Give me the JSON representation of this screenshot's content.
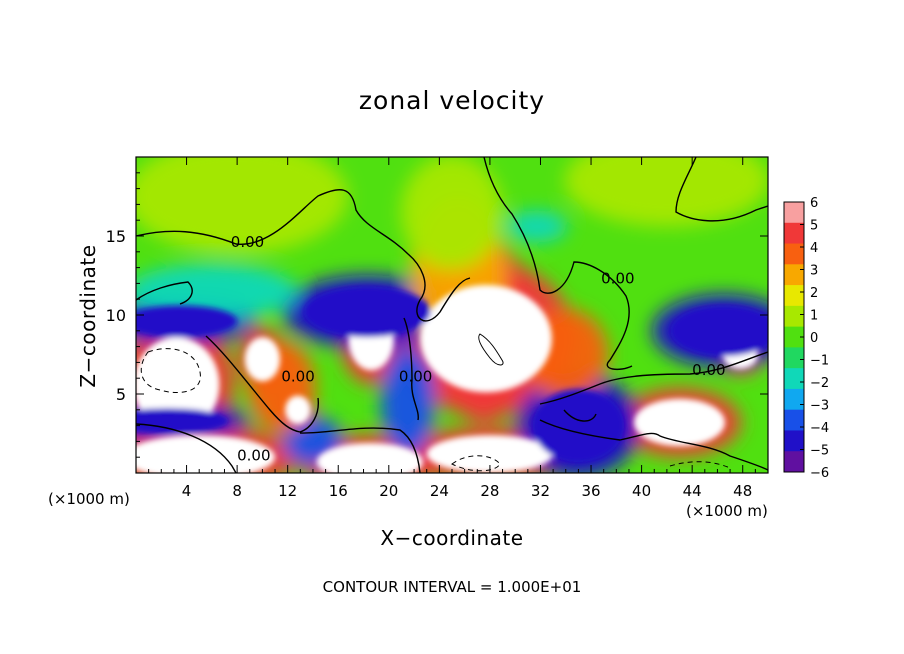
{
  "chart_data": {
    "type": "heatmap",
    "title": "zonal velocity",
    "xlabel": "X−coordinate",
    "ylabel": "Z−coordinate",
    "x_unit_label": "(×1000 m)",
    "footer": "CONTOUR INTERVAL = 1.000E+01",
    "xlim": [
      0,
      50
    ],
    "ylim": [
      0,
      20
    ],
    "x_ticks": [
      4,
      8,
      12,
      16,
      20,
      24,
      28,
      32,
      36,
      40,
      44,
      48
    ],
    "y_ticks": [
      5,
      10,
      15
    ],
    "colorbar": {
      "ticks": [
        6,
        5,
        4,
        3,
        2,
        1,
        0,
        -1,
        -2,
        -3,
        -4,
        -5,
        -6
      ],
      "colors": [
        "#f8a0a0",
        "#f03838",
        "#f86010",
        "#f8a800",
        "#e8e800",
        "#a8e800",
        "#50e010",
        "#20d860",
        "#10d8b8",
        "#10a8f0",
        "#1850e8",
        "#2010c8",
        "#6010a0"
      ]
    },
    "contour_interval": 10,
    "contour_labels": [
      {
        "text": "0.00",
        "x": 7.5,
        "y": 14.3
      },
      {
        "text": "0.00",
        "x": 36.8,
        "y": 12.0
      },
      {
        "text": "0.00",
        "x": 44.0,
        "y": 6.2
      },
      {
        "text": "0.00",
        "x": 8.0,
        "y": 0.8
      },
      {
        "text": "0.00",
        "x": 11.5,
        "y": 5.8
      },
      {
        "text": "0.00",
        "x": 20.8,
        "y": 5.8
      }
    ],
    "regions": [
      {
        "v": 6,
        "cx": 27.7,
        "cy": 8.5,
        "rx": 5.2,
        "ry": 3.4
      },
      {
        "v": 6,
        "cx": 18.6,
        "cy": 8.5,
        "rx": 1.8,
        "ry": 2.0
      },
      {
        "v": 6,
        "cx": 43.0,
        "cy": 3.2,
        "rx": 3.6,
        "ry": 1.5
      },
      {
        "v": 6,
        "cx": 3.2,
        "cy": 5.6,
        "rx": 3.4,
        "ry": 3.0
      },
      {
        "v": 6,
        "cx": 5.0,
        "cy": 1.0,
        "rx": 6.0,
        "ry": 1.4
      },
      {
        "v": 6,
        "cx": 18.5,
        "cy": 0.7,
        "rx": 4.2,
        "ry": 1.2
      },
      {
        "v": 6,
        "cx": 28.0,
        "cy": 1.2,
        "rx": 5.0,
        "ry": 1.2
      },
      {
        "v": 6,
        "cx": 10.0,
        "cy": 7.2,
        "rx": 1.4,
        "ry": 1.4
      },
      {
        "v": 6,
        "cx": 12.8,
        "cy": 4.0,
        "rx": 1.0,
        "ry": 0.9
      },
      {
        "v": 6,
        "cx": 47.8,
        "cy": 7.5,
        "rx": 1.4,
        "ry": 0.9
      },
      {
        "v": -5,
        "cx": 18.3,
        "cy": 10.2,
        "rx": 5.0,
        "ry": 1.6
      },
      {
        "v": -5,
        "cx": 3.5,
        "cy": 9.6,
        "rx": 4.5,
        "ry": 1.0
      },
      {
        "v": -5,
        "cx": 46.5,
        "cy": 9.0,
        "rx": 4.2,
        "ry": 1.6
      },
      {
        "v": -5,
        "cx": 35.0,
        "cy": 3.0,
        "rx": 3.6,
        "ry": 2.3
      },
      {
        "v": -5,
        "cx": 2.5,
        "cy": 3.3,
        "rx": 4.8,
        "ry": 0.8
      },
      {
        "v": -4,
        "cx": 14.0,
        "cy": 2.0,
        "rx": 1.8,
        "ry": 1.1
      },
      {
        "v": -4,
        "cx": 21.5,
        "cy": 4.5,
        "rx": 1.6,
        "ry": 2.4
      },
      {
        "v": -2,
        "cx": 31.7,
        "cy": 15.6,
        "rx": 1.8,
        "ry": 0.7
      },
      {
        "v": -2,
        "cx": 6.0,
        "cy": 11.5,
        "rx": 5.0,
        "ry": 1.2
      },
      {
        "v": 5,
        "cx": 27.5,
        "cy": 9.0,
        "rx": 3.0,
        "ry": 4.0
      },
      {
        "v": 3,
        "cx": 25.5,
        "cy": 12.5,
        "rx": 2.8,
        "ry": 3.5
      },
      {
        "v": 4,
        "cx": 34.0,
        "cy": 7.5,
        "rx": 2.5,
        "ry": 2.0
      },
      {
        "v": 4,
        "cx": 11.5,
        "cy": 5.5,
        "rx": 2.0,
        "ry": 2.0
      },
      {
        "v": 1,
        "cx": 25.0,
        "cy": 16.5,
        "rx": 3.0,
        "ry": 2.5
      },
      {
        "v": 1,
        "cx": 8.0,
        "cy": 17.5,
        "rx": 6.5,
        "ry": 2.5
      },
      {
        "v": 1,
        "cx": 42.0,
        "cy": 18.5,
        "rx": 6.0,
        "ry": 2.0
      }
    ]
  }
}
